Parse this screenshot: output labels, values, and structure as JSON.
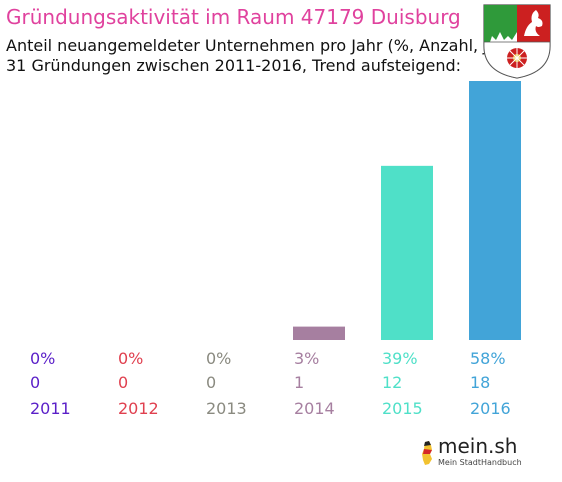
{
  "header": {
    "title": "Gründungsaktivität im Raum 47179 Duisburg",
    "subtitle_line1": "Anteil neuangemeldeter Unternehmen pro Jahr (%, Anzahl, Jahr)",
    "subtitle_line2": "31 Gründungen zwischen 2011-2016, Trend aufsteigend:"
  },
  "crest": {
    "icon": "nrw-coat-of-arms-icon"
  },
  "footer": {
    "brand": "mein.sh",
    "tagline": "Mein StadtHandbuch",
    "icon": "germany-map-pin-icon"
  },
  "chart_data": {
    "type": "bar",
    "categories": [
      "2011",
      "2012",
      "2013",
      "2014",
      "2015",
      "2016"
    ],
    "percent_labels": [
      "0%",
      "0%",
      "0%",
      "3%",
      "39%",
      "58%"
    ],
    "counts": [
      0,
      0,
      0,
      1,
      12,
      18
    ],
    "percent_values": [
      0,
      0,
      0,
      3,
      39,
      58
    ],
    "colors": [
      "#5a1fc8",
      "#e0404f",
      "#8a8a80",
      "#a67fa0",
      "#4fe0c8",
      "#42a4d8"
    ]
  }
}
